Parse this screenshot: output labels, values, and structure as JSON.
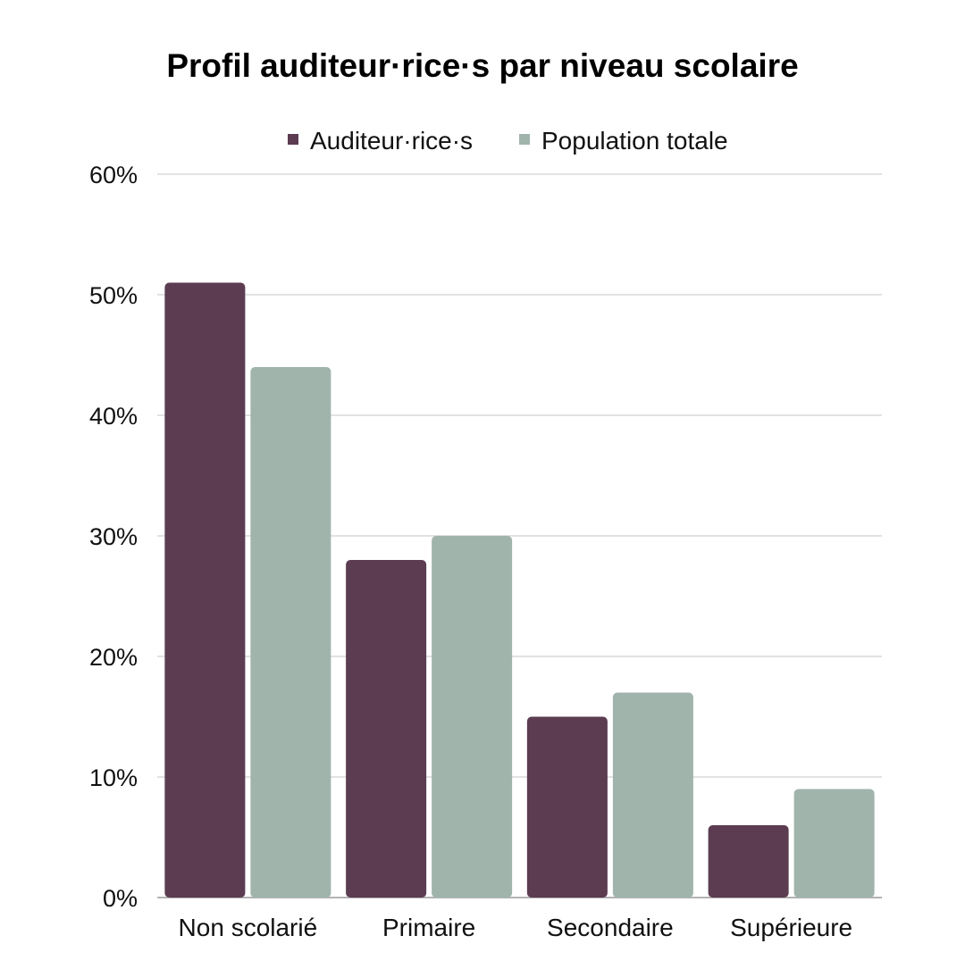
{
  "chart_data": {
    "type": "bar",
    "title": "Profil auditeur·rice·s par niveau scolaire",
    "xlabel": "",
    "ylabel": "",
    "categories": [
      "Non scolarié",
      "Primaire",
      "Secondaire",
      "Supérieure"
    ],
    "series": [
      {
        "name": "Auditeur·rice·s",
        "color": "#5b3c51",
        "values": [
          51,
          28,
          15,
          6
        ]
      },
      {
        "name": "Population totale",
        "color": "#a0b4ab",
        "values": [
          44,
          30,
          17,
          9
        ]
      }
    ],
    "ylim": [
      0,
      60
    ],
    "yticks": [
      0,
      10,
      20,
      30,
      40,
      50,
      60
    ],
    "ytick_labels": [
      "0%",
      "10%",
      "20%",
      "30%",
      "40%",
      "50%",
      "60%"
    ],
    "grid": true,
    "legend_position": "top-center"
  }
}
